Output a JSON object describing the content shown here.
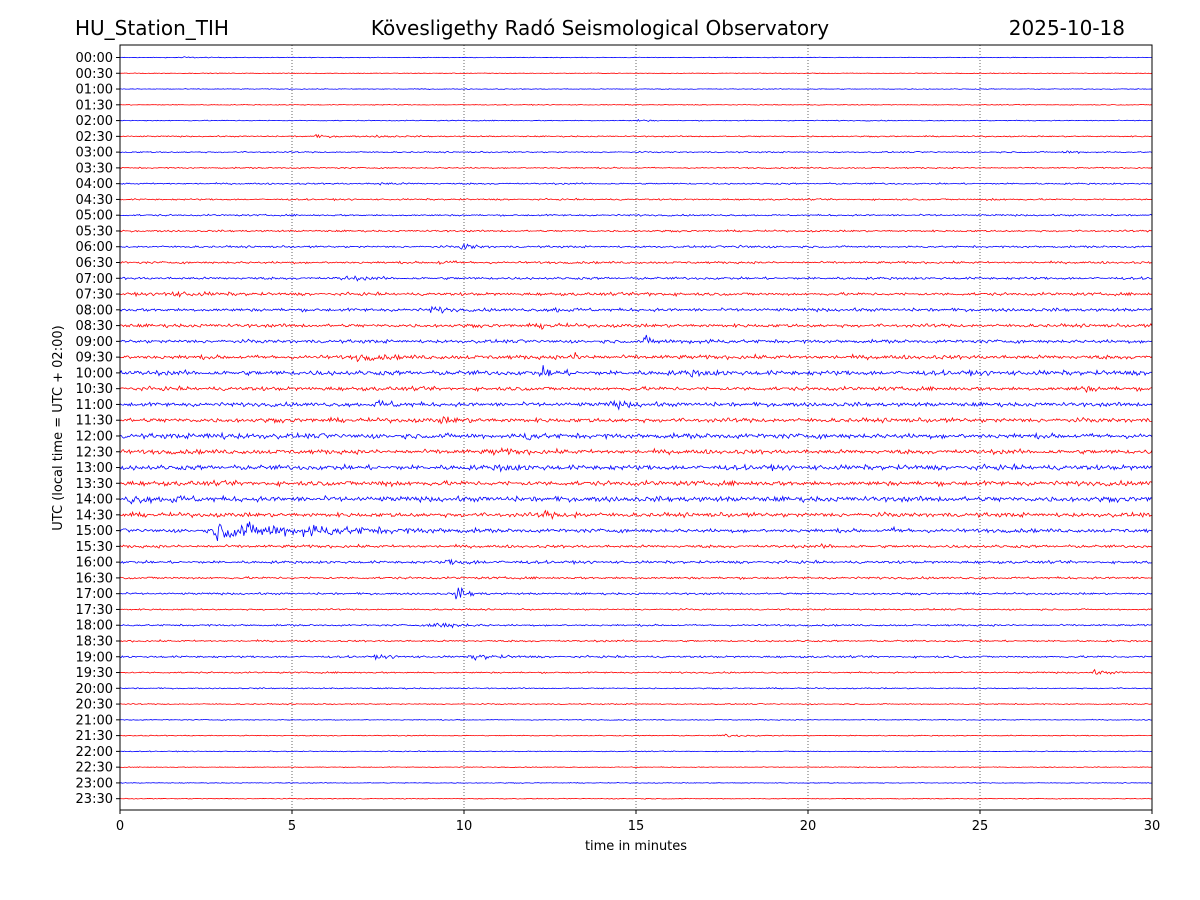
{
  "header": {
    "station": "HU_Station_TIH",
    "observatory": "Kövesligethy Radó Seismological Observatory",
    "date": "2025-10-18"
  },
  "chart_data": {
    "type": "line",
    "title": "Kövesligethy Radó Seismological Observatory",
    "xlabel": "time in minutes",
    "ylabel": "UTC (local time = UTC + 02:00)",
    "xlim": [
      0,
      30
    ],
    "xticks": [
      0,
      5,
      10,
      15,
      20,
      25,
      30
    ],
    "x_tick_labels": [
      "0",
      "5",
      "10",
      "15",
      "20",
      "25",
      "30"
    ],
    "grid": "vertical dotted at x ticks",
    "trace_colors": [
      "#0000ff",
      "#ff0000"
    ],
    "rows": [
      {
        "label": "00:00",
        "noise": 0.3,
        "events": [
          {
            "t": 1.8,
            "amp": 0.8,
            "dur": 0.4
          }
        ]
      },
      {
        "label": "00:30",
        "noise": 0.3,
        "events": []
      },
      {
        "label": "01:00",
        "noise": 0.35,
        "events": []
      },
      {
        "label": "01:30",
        "noise": 0.35,
        "events": []
      },
      {
        "label": "02:00",
        "noise": 0.4,
        "events": [
          {
            "t": 15.1,
            "amp": 1.2,
            "dur": 0.2
          }
        ]
      },
      {
        "label": "02:30",
        "noise": 0.55,
        "events": [
          {
            "t": 5.6,
            "amp": 1.2,
            "dur": 0.6
          },
          {
            "t": 7.5,
            "amp": 1.0,
            "dur": 0.5
          }
        ]
      },
      {
        "label": "03:00",
        "noise": 0.6,
        "events": [
          {
            "t": 27.5,
            "amp": 1.0,
            "dur": 0.5
          }
        ]
      },
      {
        "label": "03:30",
        "noise": 0.6,
        "events": []
      },
      {
        "label": "04:00",
        "noise": 0.7,
        "events": [
          {
            "t": 7.5,
            "amp": 1.1,
            "dur": 0.5
          }
        ]
      },
      {
        "label": "04:30",
        "noise": 0.7,
        "events": [
          {
            "t": 25.3,
            "amp": 1.0,
            "dur": 0.4
          }
        ]
      },
      {
        "label": "05:00",
        "noise": 0.75,
        "events": []
      },
      {
        "label": "05:30",
        "noise": 0.8,
        "events": []
      },
      {
        "label": "06:00",
        "noise": 0.9,
        "events": [
          {
            "t": 10.0,
            "amp": 3.2,
            "dur": 0.3
          },
          {
            "t": 18.0,
            "amp": 1.3,
            "dur": 0.4
          }
        ]
      },
      {
        "label": "06:30",
        "noise": 1.0,
        "events": [
          {
            "t": 9.3,
            "amp": 1.5,
            "dur": 0.5
          }
        ]
      },
      {
        "label": "07:00",
        "noise": 1.1,
        "events": [
          {
            "t": 6.5,
            "amp": 1.6,
            "dur": 0.6
          }
        ]
      },
      {
        "label": "07:30",
        "noise": 1.3,
        "events": [
          {
            "t": 1.3,
            "amp": 2.0,
            "dur": 1.0
          },
          {
            "t": 15.3,
            "amp": 1.5,
            "dur": 0.4
          }
        ]
      },
      {
        "label": "08:00",
        "noise": 1.4,
        "events": [
          {
            "t": 9.1,
            "amp": 3.0,
            "dur": 0.3
          },
          {
            "t": 12.6,
            "amp": 1.6,
            "dur": 0.5
          }
        ]
      },
      {
        "label": "08:30",
        "noise": 1.5,
        "events": [
          {
            "t": 12.3,
            "amp": 2.0,
            "dur": 0.4
          }
        ]
      },
      {
        "label": "09:00",
        "noise": 1.5,
        "events": [
          {
            "t": 15.3,
            "amp": 3.4,
            "dur": 0.3
          },
          {
            "t": 16.5,
            "amp": 1.6,
            "dur": 0.8
          }
        ]
      },
      {
        "label": "09:30",
        "noise": 1.8,
        "events": [
          {
            "t": 6.9,
            "amp": 2.2,
            "dur": 0.6
          },
          {
            "t": 13.2,
            "amp": 3.2,
            "dur": 0.3
          }
        ]
      },
      {
        "label": "10:00",
        "noise": 2.1,
        "events": [
          {
            "t": 12.3,
            "amp": 3.5,
            "dur": 0.4
          },
          {
            "t": 16.5,
            "amp": 2.2,
            "dur": 0.5
          }
        ]
      },
      {
        "label": "10:30",
        "noise": 1.7,
        "events": [
          {
            "t": 27.9,
            "amp": 2.2,
            "dur": 0.4
          }
        ]
      },
      {
        "label": "11:00",
        "noise": 1.8,
        "events": [
          {
            "t": 7.5,
            "amp": 3.0,
            "dur": 0.5
          },
          {
            "t": 14.3,
            "amp": 2.5,
            "dur": 0.5
          }
        ]
      },
      {
        "label": "11:30",
        "noise": 1.9,
        "events": [
          {
            "t": 9.3,
            "amp": 2.0,
            "dur": 0.5
          }
        ]
      },
      {
        "label": "12:00",
        "noise": 2.2,
        "events": [
          {
            "t": 11.8,
            "amp": 3.4,
            "dur": 0.3
          },
          {
            "t": 2.5,
            "amp": 1.8,
            "dur": 0.8
          }
        ]
      },
      {
        "label": "12:30",
        "noise": 2.0,
        "events": [
          {
            "t": 10.8,
            "amp": 1.8,
            "dur": 0.6
          }
        ]
      },
      {
        "label": "13:00",
        "noise": 2.2,
        "events": [
          {
            "t": 11.0,
            "amp": 2.0,
            "dur": 0.6
          }
        ]
      },
      {
        "label": "13:30",
        "noise": 2.1,
        "events": [
          {
            "t": 7.6,
            "amp": 1.8,
            "dur": 0.5
          }
        ]
      },
      {
        "label": "14:00",
        "noise": 2.3,
        "events": [
          {
            "t": 0.3,
            "amp": 2.6,
            "dur": 0.5
          },
          {
            "t": 1.5,
            "amp": 2.0,
            "dur": 0.6
          }
        ]
      },
      {
        "label": "14:30",
        "noise": 1.9,
        "events": [
          {
            "t": 12.3,
            "amp": 3.0,
            "dur": 0.3
          },
          {
            "t": 13.2,
            "amp": 1.8,
            "dur": 0.3
          }
        ]
      },
      {
        "label": "15:00",
        "noise": 1.7,
        "events": [
          {
            "t": 2.8,
            "amp": 7.5,
            "dur": 2.6
          },
          {
            "t": 5.3,
            "amp": 3.2,
            "dur": 0.8
          },
          {
            "t": 22.5,
            "amp": 1.6,
            "dur": 0.4
          }
        ]
      },
      {
        "label": "15:30",
        "noise": 1.3,
        "events": [
          {
            "t": 20.5,
            "amp": 1.4,
            "dur": 0.4
          }
        ]
      },
      {
        "label": "16:00",
        "noise": 1.2,
        "events": [
          {
            "t": 9.5,
            "amp": 1.8,
            "dur": 1.0
          }
        ]
      },
      {
        "label": "16:30",
        "noise": 1.0,
        "events": []
      },
      {
        "label": "17:00",
        "noise": 0.9,
        "events": [
          {
            "t": 9.8,
            "amp": 5.5,
            "dur": 0.3
          }
        ]
      },
      {
        "label": "17:30",
        "noise": 0.7,
        "events": []
      },
      {
        "label": "18:00",
        "noise": 0.8,
        "events": [
          {
            "t": 9.1,
            "amp": 3.6,
            "dur": 0.6
          }
        ]
      },
      {
        "label": "18:30",
        "noise": 0.8,
        "events": []
      },
      {
        "label": "19:00",
        "noise": 0.9,
        "events": [
          {
            "t": 10.3,
            "amp": 2.4,
            "dur": 0.6
          },
          {
            "t": 7.5,
            "amp": 1.3,
            "dur": 0.5
          }
        ]
      },
      {
        "label": "19:30",
        "noise": 0.7,
        "events": [
          {
            "t": 28.3,
            "amp": 1.6,
            "dur": 0.5
          }
        ]
      },
      {
        "label": "20:00",
        "noise": 0.55,
        "events": []
      },
      {
        "label": "20:30",
        "noise": 0.5,
        "events": []
      },
      {
        "label": "21:00",
        "noise": 0.4,
        "events": []
      },
      {
        "label": "21:30",
        "noise": 0.45,
        "events": [
          {
            "t": 17.5,
            "amp": 1.5,
            "dur": 0.5
          }
        ]
      },
      {
        "label": "22:00",
        "noise": 0.4,
        "events": []
      },
      {
        "label": "22:30",
        "noise": 0.35,
        "events": []
      },
      {
        "label": "23:00",
        "noise": 0.35,
        "events": []
      },
      {
        "label": "23:30",
        "noise": 0.35,
        "events": []
      }
    ]
  }
}
